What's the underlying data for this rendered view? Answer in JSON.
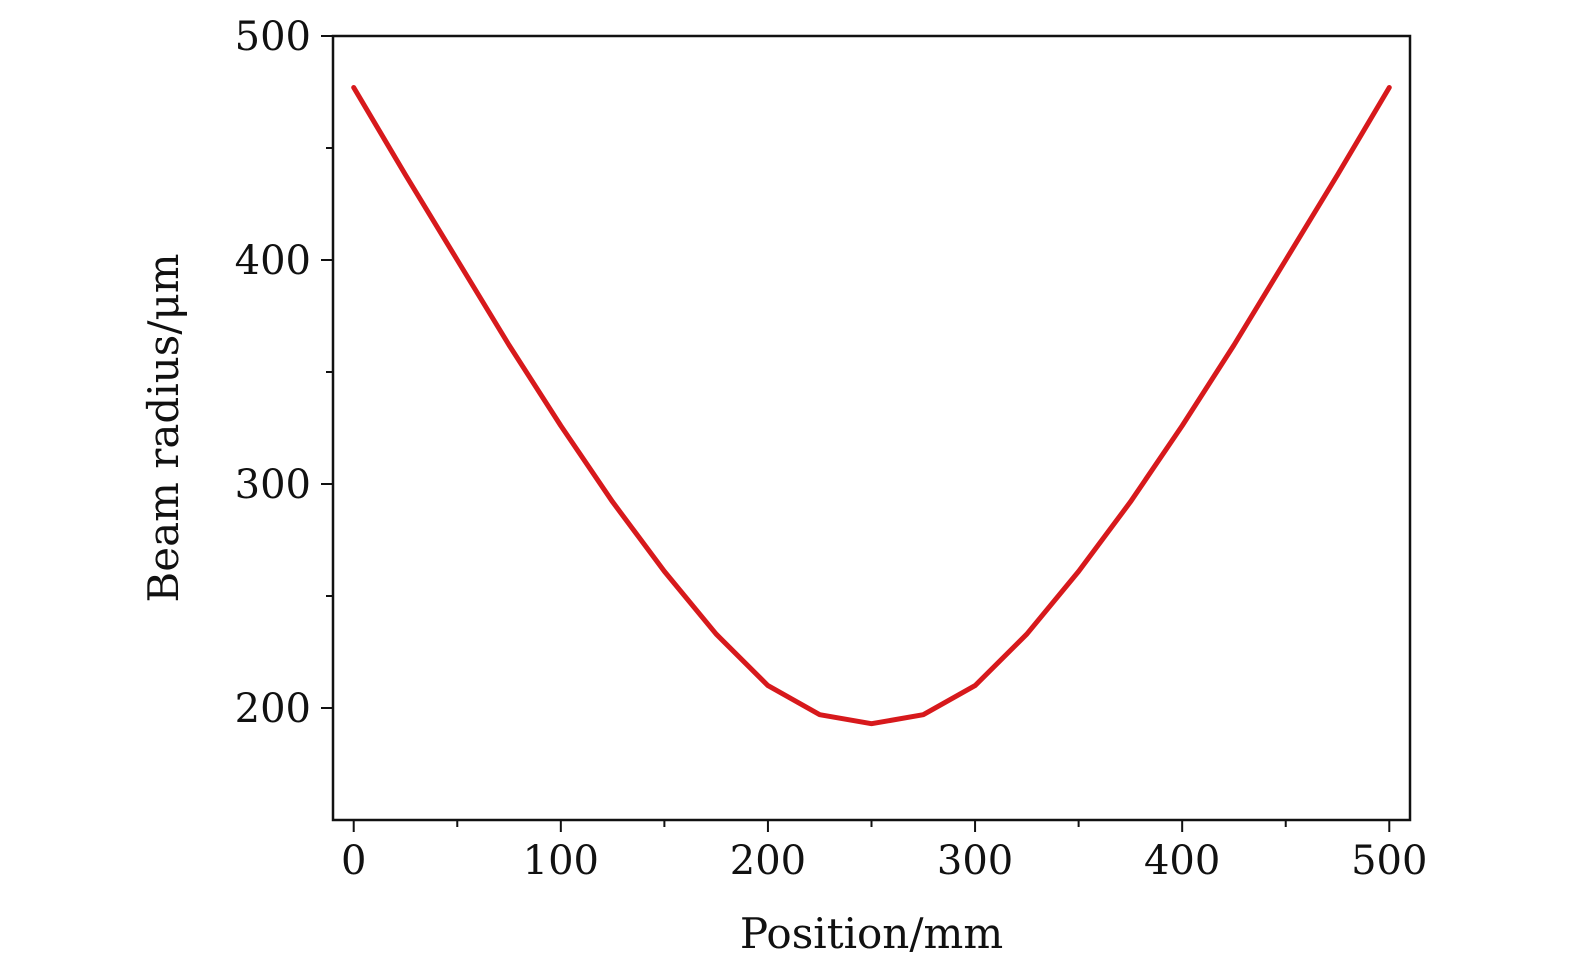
{
  "chart_data": {
    "type": "line",
    "xlabel": "Position/mm",
    "ylabel": "Beam radius/μm",
    "xlim": [
      -10,
      510
    ],
    "ylim": [
      150,
      500
    ],
    "x_ticks": [
      0,
      100,
      200,
      300,
      400,
      500
    ],
    "x_minor_ticks": [
      50,
      150,
      250,
      350,
      450
    ],
    "y_ticks": [
      200,
      300,
      400,
      500
    ],
    "y_minor_ticks": [
      250,
      350,
      450
    ],
    "grid": false,
    "series": [
      {
        "color": "#d7191c",
        "x": [
          0,
          25,
          50,
          75,
          100,
          125,
          150,
          175,
          200,
          225,
          250,
          275,
          300,
          325,
          350,
          375,
          400,
          425,
          450,
          475,
          500
        ],
        "y": [
          477,
          438,
          400,
          362,
          326,
          292,
          261,
          233,
          210,
          197,
          193,
          197,
          210,
          233,
          261,
          292,
          326,
          362,
          400,
          438,
          477
        ]
      }
    ]
  }
}
